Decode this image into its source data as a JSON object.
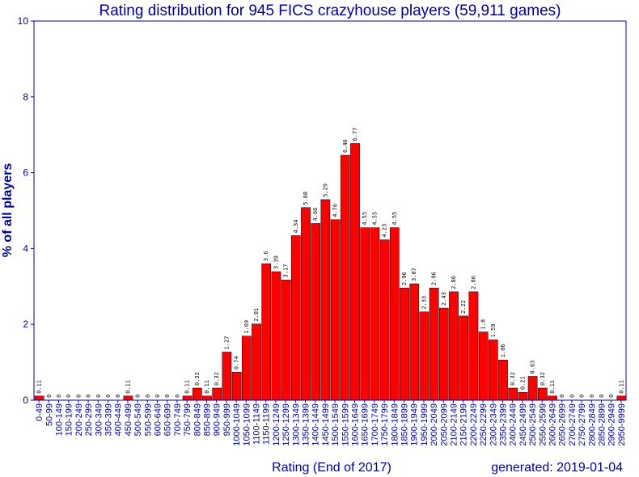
{
  "chart_data": {
    "type": "bar",
    "title": "Rating distribution for 945 FICS crazyhouse players (59,911 games)",
    "xlabel": "Rating (End of 2017)",
    "ylabel": "% of all players",
    "footer": "generated: 2019-01-04",
    "ylim": [
      0,
      10
    ],
    "yticks": [
      "0",
      "2",
      "4",
      "6",
      "8",
      "10"
    ],
    "grid": false,
    "bar_color": "#ff0000",
    "axis_color": "#0000a0",
    "categories": [
      "0-49",
      "50-99",
      "100-149",
      "150-199",
      "200-249",
      "250-299",
      "300-349",
      "350-399",
      "400-449",
      "450-499",
      "500-549",
      "550-599",
      "600-649",
      "650-699",
      "700-749",
      "750-799",
      "800-849",
      "850-899",
      "900-949",
      "950-999",
      "1000-1049",
      "1050-1099",
      "1100-1149",
      "1150-1199",
      "1200-1249",
      "1250-1299",
      "1300-1349",
      "1350-1399",
      "1400-1449",
      "1450-1499",
      "1500-1549",
      "1550-1599",
      "1600-1649",
      "1650-1699",
      "1700-1749",
      "1750-1799",
      "1800-1849",
      "1850-1899",
      "1900-1949",
      "1950-1999",
      "2000-2049",
      "2050-2099",
      "2100-2149",
      "2150-2199",
      "2200-2249",
      "2250-2299",
      "2300-2349",
      "2350-2399",
      "2400-2449",
      "2450-2499",
      "2500-2549",
      "2550-2599",
      "2600-2649",
      "2650-2699",
      "2700-2749",
      "2750-2799",
      "2800-2849",
      "2850-2899",
      "2900-2949",
      "2950-9999"
    ],
    "values": [
      0.11,
      0,
      0,
      0,
      0,
      0,
      0,
      0,
      0,
      0.11,
      0,
      0,
      0,
      0,
      0,
      0.11,
      0.32,
      0.11,
      0.32,
      1.27,
      0.74,
      1.69,
      2.01,
      3.6,
      3.39,
      3.17,
      4.34,
      5.08,
      4.66,
      5.29,
      4.76,
      6.46,
      6.77,
      4.55,
      4.55,
      4.23,
      4.55,
      2.96,
      3.07,
      2.33,
      2.96,
      2.43,
      2.86,
      2.22,
      2.86,
      1.8,
      1.59,
      1.06,
      0.32,
      0.21,
      0.63,
      0.32,
      0.11,
      0,
      0,
      0,
      0,
      0,
      0,
      0.11
    ],
    "data_labels": [
      "0.11",
      "0",
      "0",
      "0",
      "0",
      "0",
      "0",
      "0",
      "0",
      "0.11",
      "0",
      "0",
      "0",
      "0",
      "0",
      "0.11",
      "0.32",
      "0.11",
      "0.32",
      "1.27",
      "0.74",
      "1.69",
      "2.01",
      "3.6",
      "3.39",
      "3.17",
      "4.34",
      "5.08",
      "4.66",
      "5.29",
      "4.76",
      "6.46",
      "6.77",
      "4.55",
      "4.55",
      "4.23",
      "4.55",
      "2.96",
      "3.07",
      "2.33",
      "2.96",
      "2.43",
      "2.86",
      "2.22",
      "2.86",
      "1.8",
      "1.59",
      "1.06",
      "0.32",
      "0.21",
      "0.63",
      "0.32",
      "0.11",
      "0",
      "0",
      "0",
      "0",
      "0",
      "0",
      "0.11"
    ]
  }
}
